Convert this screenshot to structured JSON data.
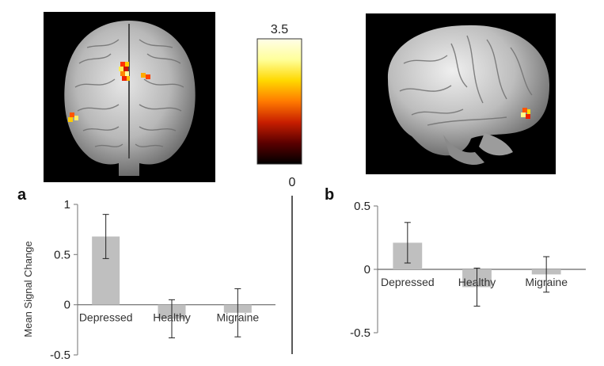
{
  "colorbar": {
    "max_label": "3.5",
    "min_label": "0",
    "colors": [
      "#000000",
      "#5a0000",
      "#c81e00",
      "#ff7a00",
      "#ffd800",
      "#ffff9a",
      "#fffde8"
    ]
  },
  "brain_images": [
    {
      "name": "brain-coronal-view",
      "icon": "brain-front-icon"
    },
    {
      "name": "brain-sagittal-view",
      "icon": "brain-side-icon"
    }
  ],
  "chart_data": [
    {
      "type": "bar",
      "panel": "a",
      "categories": [
        "Depressed",
        "Healthy",
        "Migraine"
      ],
      "values": [
        0.68,
        -0.14,
        -0.08
      ],
      "errors": [
        0.22,
        0.19,
        0.24
      ],
      "ylabel": "Mean Signal Change",
      "ylim": [
        -0.5,
        1
      ],
      "yticks": [
        1,
        0.5,
        0,
        -0.5
      ],
      "ytick_labels": [
        "1",
        "0.5",
        "0",
        "-0.5"
      ],
      "bar_color": "#bfbfbf",
      "grid": false
    },
    {
      "type": "bar",
      "panel": "b",
      "categories": [
        "Depressed",
        "Healthy",
        "Migraine"
      ],
      "values": [
        0.21,
        -0.14,
        -0.04
      ],
      "errors": [
        0.16,
        0.15,
        0.14
      ],
      "ylabel": "",
      "ylim": [
        -0.5,
        0.5
      ],
      "yticks": [
        0.5,
        0,
        -0.5
      ],
      "ytick_labels": [
        "0.5",
        "0",
        "-0.5"
      ],
      "bar_color": "#bfbfbf",
      "grid": false
    }
  ]
}
